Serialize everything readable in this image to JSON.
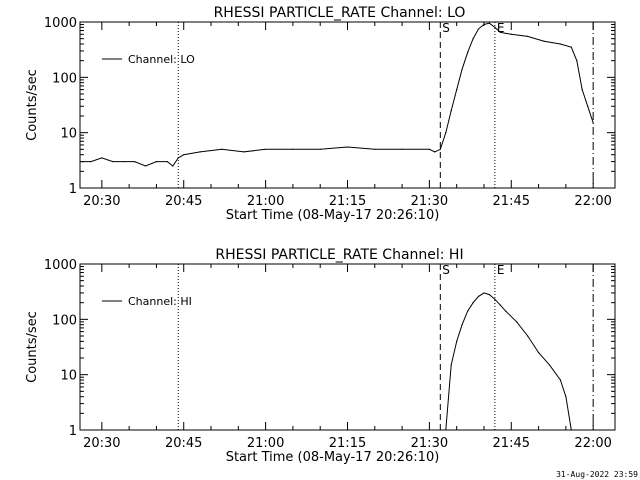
{
  "footer": {
    "timestamp": "31-Aug-2022 23:59"
  },
  "chart_data": [
    {
      "type": "line",
      "title": "RHESSI PARTICLE_RATE Channel: LO",
      "xlabel": "Start Time (08-May-17 20:26:10)",
      "ylabel": "Counts/sec",
      "yscale": "log",
      "xlim": [
        "20:26",
        "22:04"
      ],
      "ylim": [
        1,
        1000
      ],
      "x_ticks": [
        "20:30",
        "20:45",
        "21:00",
        "21:15",
        "21:30",
        "21:45",
        "22:00"
      ],
      "y_ticks": [
        "1",
        "10",
        "100",
        "1000"
      ],
      "legend": {
        "placement": "top-left",
        "entries": [
          "Channel: LO"
        ]
      },
      "grid": false,
      "markers": [
        {
          "time": "20:44",
          "style": "dotted",
          "label": ""
        },
        {
          "time": "21:32",
          "style": "dashed",
          "label": "S"
        },
        {
          "time": "21:42",
          "style": "dotted",
          "label": "E"
        },
        {
          "time": "22:00",
          "style": "dashdot",
          "label": ""
        }
      ],
      "series": [
        {
          "name": "Channel: LO",
          "x": [
            "20:26",
            "20:28",
            "20:30",
            "20:32",
            "20:34",
            "20:36",
            "20:38",
            "20:40",
            "20:42",
            "20:43",
            "20:44",
            "20:45",
            "20:48",
            "20:52",
            "20:56",
            "21:00",
            "21:05",
            "21:10",
            "21:15",
            "21:20",
            "21:25",
            "21:30",
            "21:31",
            "21:32",
            "21:33",
            "21:34",
            "21:35",
            "21:36",
            "21:37",
            "21:38",
            "21:39",
            "21:40",
            "21:41",
            "21:42",
            "21:43",
            "21:45",
            "21:48",
            "21:51",
            "21:54",
            "21:56",
            "21:57",
            "21:58",
            "21:59",
            "22:00"
          ],
          "values": [
            3,
            3,
            3.5,
            3,
            3,
            3,
            2.5,
            3,
            3,
            2.5,
            3.5,
            4,
            4.5,
            5,
            4.5,
            5,
            5,
            5,
            5.5,
            5,
            5,
            5,
            4.5,
            5,
            10,
            25,
            60,
            140,
            280,
            500,
            750,
            900,
            950,
            800,
            650,
            600,
            550,
            450,
            400,
            350,
            200,
            60,
            30,
            15
          ]
        }
      ]
    },
    {
      "type": "line",
      "title": "RHESSI PARTICLE_RATE Channel: HI",
      "xlabel": "Start Time (08-May-17 20:26:10)",
      "ylabel": "Counts/sec",
      "yscale": "log",
      "xlim": [
        "20:26",
        "22:04"
      ],
      "ylim": [
        1,
        1000
      ],
      "x_ticks": [
        "20:30",
        "20:45",
        "21:00",
        "21:15",
        "21:30",
        "21:45",
        "22:00"
      ],
      "y_ticks": [
        "1",
        "10",
        "100",
        "1000"
      ],
      "legend": {
        "placement": "top-left",
        "entries": [
          "Channel: HI"
        ]
      },
      "grid": false,
      "markers": [
        {
          "time": "20:44",
          "style": "dotted",
          "label": ""
        },
        {
          "time": "21:32",
          "style": "dashed",
          "label": "S"
        },
        {
          "time": "21:42",
          "style": "dotted",
          "label": "E"
        },
        {
          "time": "22:00",
          "style": "dashdot",
          "label": ""
        }
      ],
      "series": [
        {
          "name": "Channel: HI",
          "x": [
            "21:33",
            "21:34",
            "21:35",
            "21:36",
            "21:37",
            "21:38",
            "21:39",
            "21:40",
            "21:41",
            "21:42",
            "21:43",
            "21:44",
            "21:46",
            "21:48",
            "21:50",
            "21:52",
            "21:54",
            "21:55",
            "21:56"
          ],
          "values": [
            1,
            15,
            40,
            80,
            140,
            200,
            260,
            300,
            280,
            230,
            180,
            140,
            90,
            50,
            25,
            15,
            8,
            4,
            1
          ]
        }
      ]
    }
  ]
}
